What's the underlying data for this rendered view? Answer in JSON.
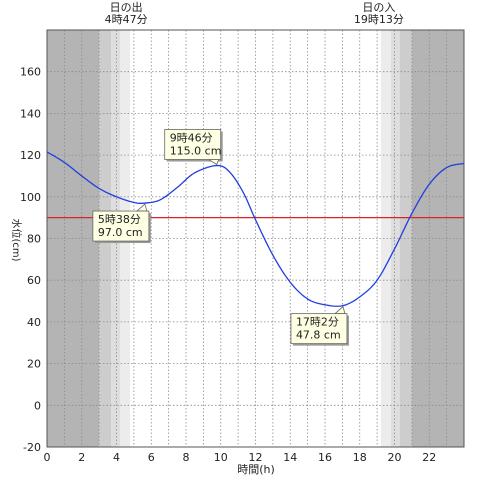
{
  "sun": {
    "sunrise_label": "日の出",
    "sunrise_time": "4時47分",
    "sunset_label": "日の入",
    "sunset_time": "19時13分",
    "sunrise_hour": 4.783,
    "sunset_hour": 19.217,
    "twilight_bands": [
      {
        "from": 0,
        "to": 3.0,
        "shade": "#b4b4b4"
      },
      {
        "from": 3.0,
        "to": 3.7,
        "shade": "#cdcdcd"
      },
      {
        "from": 3.7,
        "to": 4.2,
        "shade": "#dedede"
      },
      {
        "from": 4.2,
        "to": 4.783,
        "shade": "#ececec"
      },
      {
        "from": 19.217,
        "to": 19.8,
        "shade": "#ececec"
      },
      {
        "from": 19.8,
        "to": 20.3,
        "shade": "#dedede"
      },
      {
        "from": 20.3,
        "to": 21.0,
        "shade": "#cdcdcd"
      },
      {
        "from": 21.0,
        "to": 24,
        "shade": "#b4b4b4"
      }
    ]
  },
  "chart_data": {
    "type": "line",
    "xlabel": "時間(h)",
    "ylabel": "水位(cm)",
    "xlim": [
      0,
      24
    ],
    "ylim": [
      -20,
      180
    ],
    "x_ticks": [
      0,
      2,
      4,
      6,
      8,
      10,
      12,
      14,
      16,
      18,
      20,
      22
    ],
    "x_minor_step": 1,
    "y_ticks": [
      -20,
      0,
      20,
      40,
      60,
      80,
      100,
      120,
      140,
      160
    ],
    "reference_line": {
      "y": 90,
      "color": "#dd2222"
    },
    "series": [
      {
        "color": "#1f3fe0",
        "points": [
          [
            0,
            121.5
          ],
          [
            1,
            116.5
          ],
          [
            2,
            110
          ],
          [
            3,
            104
          ],
          [
            4,
            100
          ],
          [
            5,
            97.3
          ],
          [
            5.633,
            97.0
          ],
          [
            6.5,
            98.5
          ],
          [
            7.5,
            104.5
          ],
          [
            8.5,
            111.5
          ],
          [
            9.767,
            115.0
          ],
          [
            10.5,
            112
          ],
          [
            11.3,
            102
          ],
          [
            12,
            89
          ],
          [
            13,
            72
          ],
          [
            14,
            59
          ],
          [
            15,
            51
          ],
          [
            16,
            48.2
          ],
          [
            17.033,
            47.8
          ],
          [
            18,
            52
          ],
          [
            19,
            60
          ],
          [
            20,
            75
          ],
          [
            21,
            92
          ],
          [
            22,
            106
          ],
          [
            23,
            114
          ],
          [
            24,
            116
          ]
        ]
      }
    ],
    "annotations": [
      {
        "x": 9.767,
        "y": 115.0,
        "time": "9時46分",
        "value": "115.0 cm",
        "placement": "above"
      },
      {
        "x": 5.633,
        "y": 97.0,
        "time": "5時38分",
        "value": "97.0 cm",
        "placement": "below"
      },
      {
        "x": 17.033,
        "y": 47.8,
        "time": "17時2分",
        "value": "47.8 cm",
        "placement": "below"
      }
    ]
  }
}
